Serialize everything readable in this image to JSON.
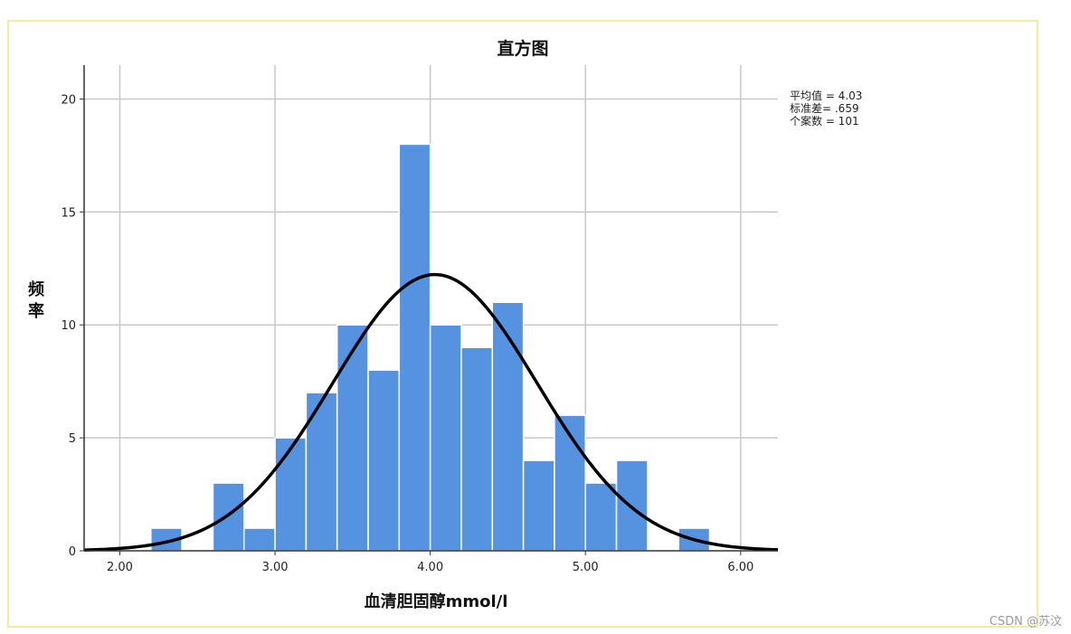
{
  "chart_data": {
    "type": "bar",
    "title": "直方图",
    "xlabel": "血清胆固醇mmol/l",
    "ylabel": "频率",
    "xlim": [
      1.77,
      6.24
    ],
    "ylim": [
      0,
      21.5
    ],
    "xticks": [
      "2.00",
      "3.00",
      "4.00",
      "5.00",
      "6.00"
    ],
    "yticks": [
      "0",
      "5",
      "10",
      "15",
      "20"
    ],
    "bin_width": 0.2,
    "bins": [
      {
        "start": 2.2,
        "end": 2.4,
        "value": 1
      },
      {
        "start": 2.6,
        "end": 2.8,
        "value": 3
      },
      {
        "start": 2.8,
        "end": 3.0,
        "value": 1
      },
      {
        "start": 3.0,
        "end": 3.2,
        "value": 5
      },
      {
        "start": 3.2,
        "end": 3.4,
        "value": 7
      },
      {
        "start": 3.4,
        "end": 3.6,
        "value": 10
      },
      {
        "start": 3.6,
        "end": 3.8,
        "value": 8
      },
      {
        "start": 3.8,
        "end": 4.0,
        "value": 18
      },
      {
        "start": 4.0,
        "end": 4.2,
        "value": 10
      },
      {
        "start": 4.2,
        "end": 4.4,
        "value": 9
      },
      {
        "start": 4.4,
        "end": 4.6,
        "value": 11
      },
      {
        "start": 4.6,
        "end": 4.8,
        "value": 4
      },
      {
        "start": 4.8,
        "end": 5.0,
        "value": 6
      },
      {
        "start": 5.0,
        "end": 5.2,
        "value": 3
      },
      {
        "start": 5.2,
        "end": 5.4,
        "value": 4
      },
      {
        "start": 5.6,
        "end": 5.8,
        "value": 1
      }
    ],
    "normal_curve": {
      "mean": 4.03,
      "sd": 0.659,
      "n": 101
    },
    "grid": true,
    "bar_color": "#5593e0",
    "curve_color": "#000000"
  },
  "stats": {
    "mean": "平均值 = 4.03",
    "sd": "标准差= .659",
    "n": "个案数 = 101"
  },
  "watermark": "CSDN @苏汶"
}
